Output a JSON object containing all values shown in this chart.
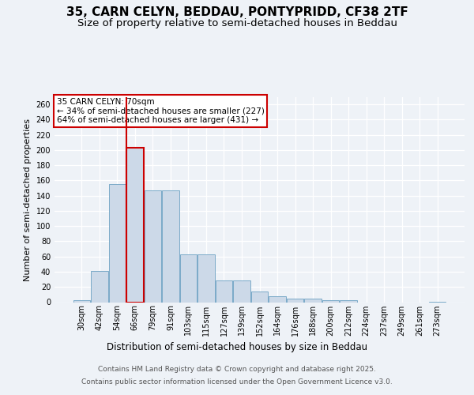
{
  "title_line1": "35, CARN CELYN, BEDDAU, PONTYPRIDD, CF38 2TF",
  "title_line2": "Size of property relative to semi-detached houses in Beddau",
  "xlabel": "Distribution of semi-detached houses by size in Beddau",
  "ylabel": "Number of semi-detached properties",
  "categories": [
    "30sqm",
    "42sqm",
    "54sqm",
    "66sqm",
    "79sqm",
    "91sqm",
    "103sqm",
    "115sqm",
    "127sqm",
    "139sqm",
    "152sqm",
    "164sqm",
    "176sqm",
    "188sqm",
    "200sqm",
    "212sqm",
    "224sqm",
    "237sqm",
    "249sqm",
    "261sqm",
    "273sqm"
  ],
  "values": [
    3,
    41,
    155,
    203,
    147,
    147,
    63,
    63,
    29,
    29,
    14,
    8,
    5,
    5,
    3,
    3,
    0,
    0,
    0,
    0,
    1
  ],
  "bar_color": "#ccd9e8",
  "bar_edge_color": "#7aaac8",
  "highlight_bar_index": 3,
  "highlight_bar_edge_color": "#cc0000",
  "vline_color": "#cc0000",
  "annotation_title": "35 CARN CELYN: 70sqm",
  "annotation_line1": "← 34% of semi-detached houses are smaller (227)",
  "annotation_line2": "64% of semi-detached houses are larger (431) →",
  "annotation_box_color": "#ffffff",
  "annotation_box_edge": "#cc0000",
  "ylim": [
    0,
    270
  ],
  "yticks": [
    0,
    20,
    40,
    60,
    80,
    100,
    120,
    140,
    160,
    180,
    200,
    220,
    240,
    260
  ],
  "footer_line1": "Contains HM Land Registry data © Crown copyright and database right 2025.",
  "footer_line2": "Contains public sector information licensed under the Open Government Licence v3.0.",
  "bg_color": "#eef2f7",
  "grid_color": "#ffffff",
  "title_fontsize": 11,
  "subtitle_fontsize": 9.5,
  "ylabel_fontsize": 8,
  "xlabel_fontsize": 8.5,
  "tick_fontsize": 7,
  "annotation_fontsize": 7.5,
  "footer_fontsize": 6.5
}
